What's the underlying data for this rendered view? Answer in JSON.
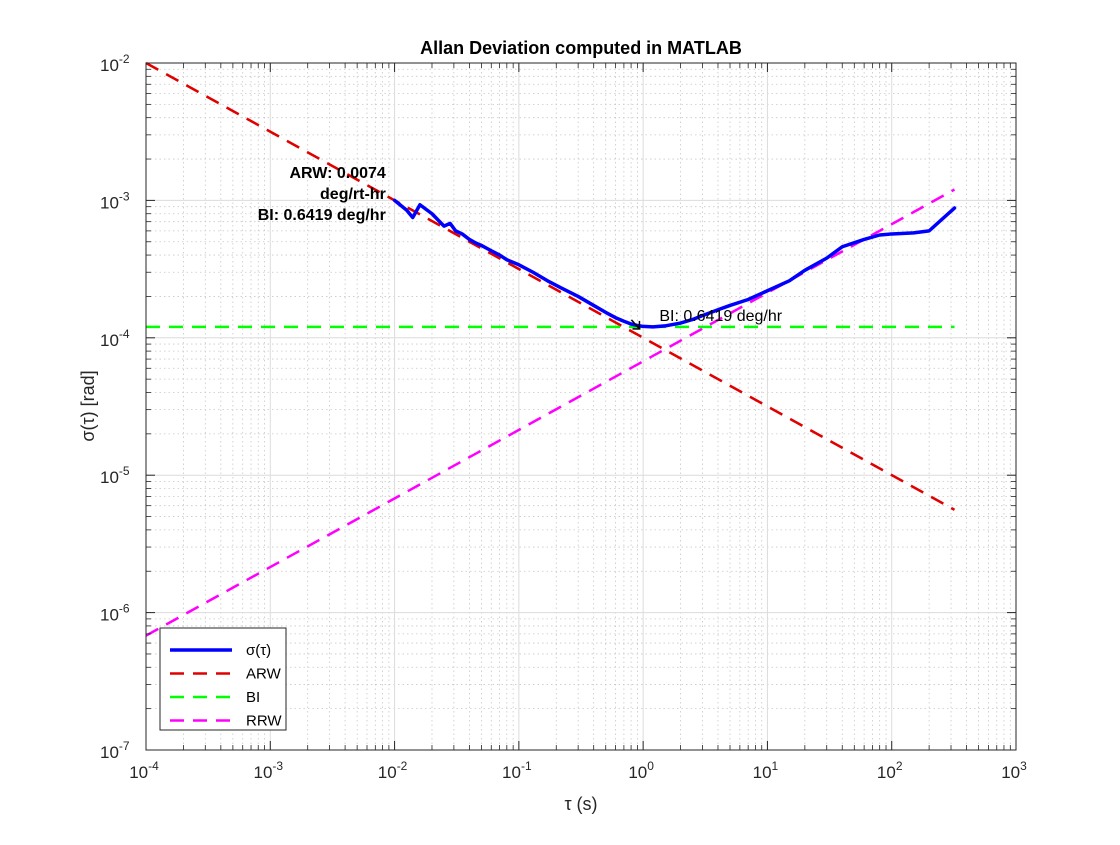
{
  "chart_data": {
    "type": "line",
    "title": "Allan Deviation computed in MATLAB",
    "xlabel": "τ (s)",
    "ylabel": "σ(τ) [rad]",
    "x_scale": "log",
    "y_scale": "log",
    "xlim": [
      0.0001,
      1000
    ],
    "ylim": [
      1e-07,
      0.01
    ],
    "grid": true,
    "minor_grid": true,
    "x_ticks": [
      {
        "value": 0.0001,
        "base": "10",
        "exp": "-4"
      },
      {
        "value": 0.001,
        "base": "10",
        "exp": "-3"
      },
      {
        "value": 0.01,
        "base": "10",
        "exp": "-2"
      },
      {
        "value": 0.1,
        "base": "10",
        "exp": "-1"
      },
      {
        "value": 1,
        "base": "10",
        "exp": "0"
      },
      {
        "value": 10,
        "base": "10",
        "exp": "1"
      },
      {
        "value": 100,
        "base": "10",
        "exp": "2"
      },
      {
        "value": 1000,
        "base": "10",
        "exp": "3"
      }
    ],
    "y_ticks": [
      {
        "value": 1e-07,
        "base": "10",
        "exp": "-7"
      },
      {
        "value": 1e-06,
        "base": "10",
        "exp": "-6"
      },
      {
        "value": 1e-05,
        "base": "10",
        "exp": "-5"
      },
      {
        "value": 0.0001,
        "base": "10",
        "exp": "-4"
      },
      {
        "value": 0.001,
        "base": "10",
        "exp": "-3"
      },
      {
        "value": 0.01,
        "base": "10",
        "exp": "-2"
      }
    ],
    "legend_position": "bottom-left",
    "series": [
      {
        "name": "σ(τ)",
        "color": "#0000ff",
        "style": "solid",
        "x": [
          0.01,
          0.0125,
          0.014,
          0.016,
          0.02,
          0.025,
          0.028,
          0.031,
          0.035,
          0.04,
          0.045,
          0.05,
          0.06,
          0.07,
          0.08,
          0.1,
          0.13,
          0.17,
          0.22,
          0.3,
          0.4,
          0.5,
          0.6,
          0.7,
          0.8,
          0.9,
          1.0,
          1.2,
          1.5,
          2.0,
          2.5,
          3.0,
          4.0,
          5.0,
          7.0,
          10,
          15,
          20,
          30,
          40,
          60,
          80,
          100,
          150,
          200,
          250,
          320
        ],
        "y": [
          0.001,
          0.00085,
          0.00075,
          0.00093,
          0.0008,
          0.00065,
          0.00068,
          0.0006,
          0.00057,
          0.00052,
          0.00049,
          0.00047,
          0.00043,
          0.0004,
          0.00037,
          0.00034,
          0.0003,
          0.00026,
          0.00023,
          0.0002,
          0.000172,
          0.000153,
          0.00014,
          0.000132,
          0.000126,
          0.000123,
          0.000121,
          0.00012,
          0.000122,
          0.000128,
          0.000136,
          0.000145,
          0.00016,
          0.000172,
          0.00019,
          0.00022,
          0.00026,
          0.00031,
          0.00038,
          0.00046,
          0.00052,
          0.00056,
          0.00057,
          0.00058,
          0.0006,
          0.00072,
          0.00088
        ]
      },
      {
        "name": "ARW",
        "color": "#e00000",
        "style": "dashed",
        "x": [
          0.0001,
          320
        ],
        "y": [
          0.01,
          5.6e-06
        ]
      },
      {
        "name": "BI",
        "color": "#00ff00",
        "style": "dashed",
        "x": [
          0.0001,
          320
        ],
        "y": [
          0.00012,
          0.00012
        ]
      },
      {
        "name": "RRW",
        "color": "#ff00ff",
        "style": "dashed",
        "x": [
          0.0001,
          320
        ],
        "y": [
          6.8e-07,
          0.0012
        ]
      }
    ],
    "annotations": [
      {
        "text": "ARW: 0.0074",
        "x": 0.0085,
        "y": 0.00145,
        "weight": "bold",
        "anchor": "end"
      },
      {
        "text": "deg/rt-hr",
        "x": 0.0085,
        "y": 0.00102,
        "weight": "bold",
        "anchor": "end"
      },
      {
        "text": "BI: 0.6419 deg/hr",
        "x": 0.0085,
        "y": 0.00072,
        "weight": "bold",
        "anchor": "end"
      },
      {
        "text": "BI: 0.6419 deg/hr",
        "x": 1.35,
        "y": 0.000132,
        "weight": "normal",
        "anchor": "start"
      }
    ],
    "markers": [
      {
        "label": "↘",
        "x": 0.9,
        "y": 0.00012
      }
    ]
  }
}
